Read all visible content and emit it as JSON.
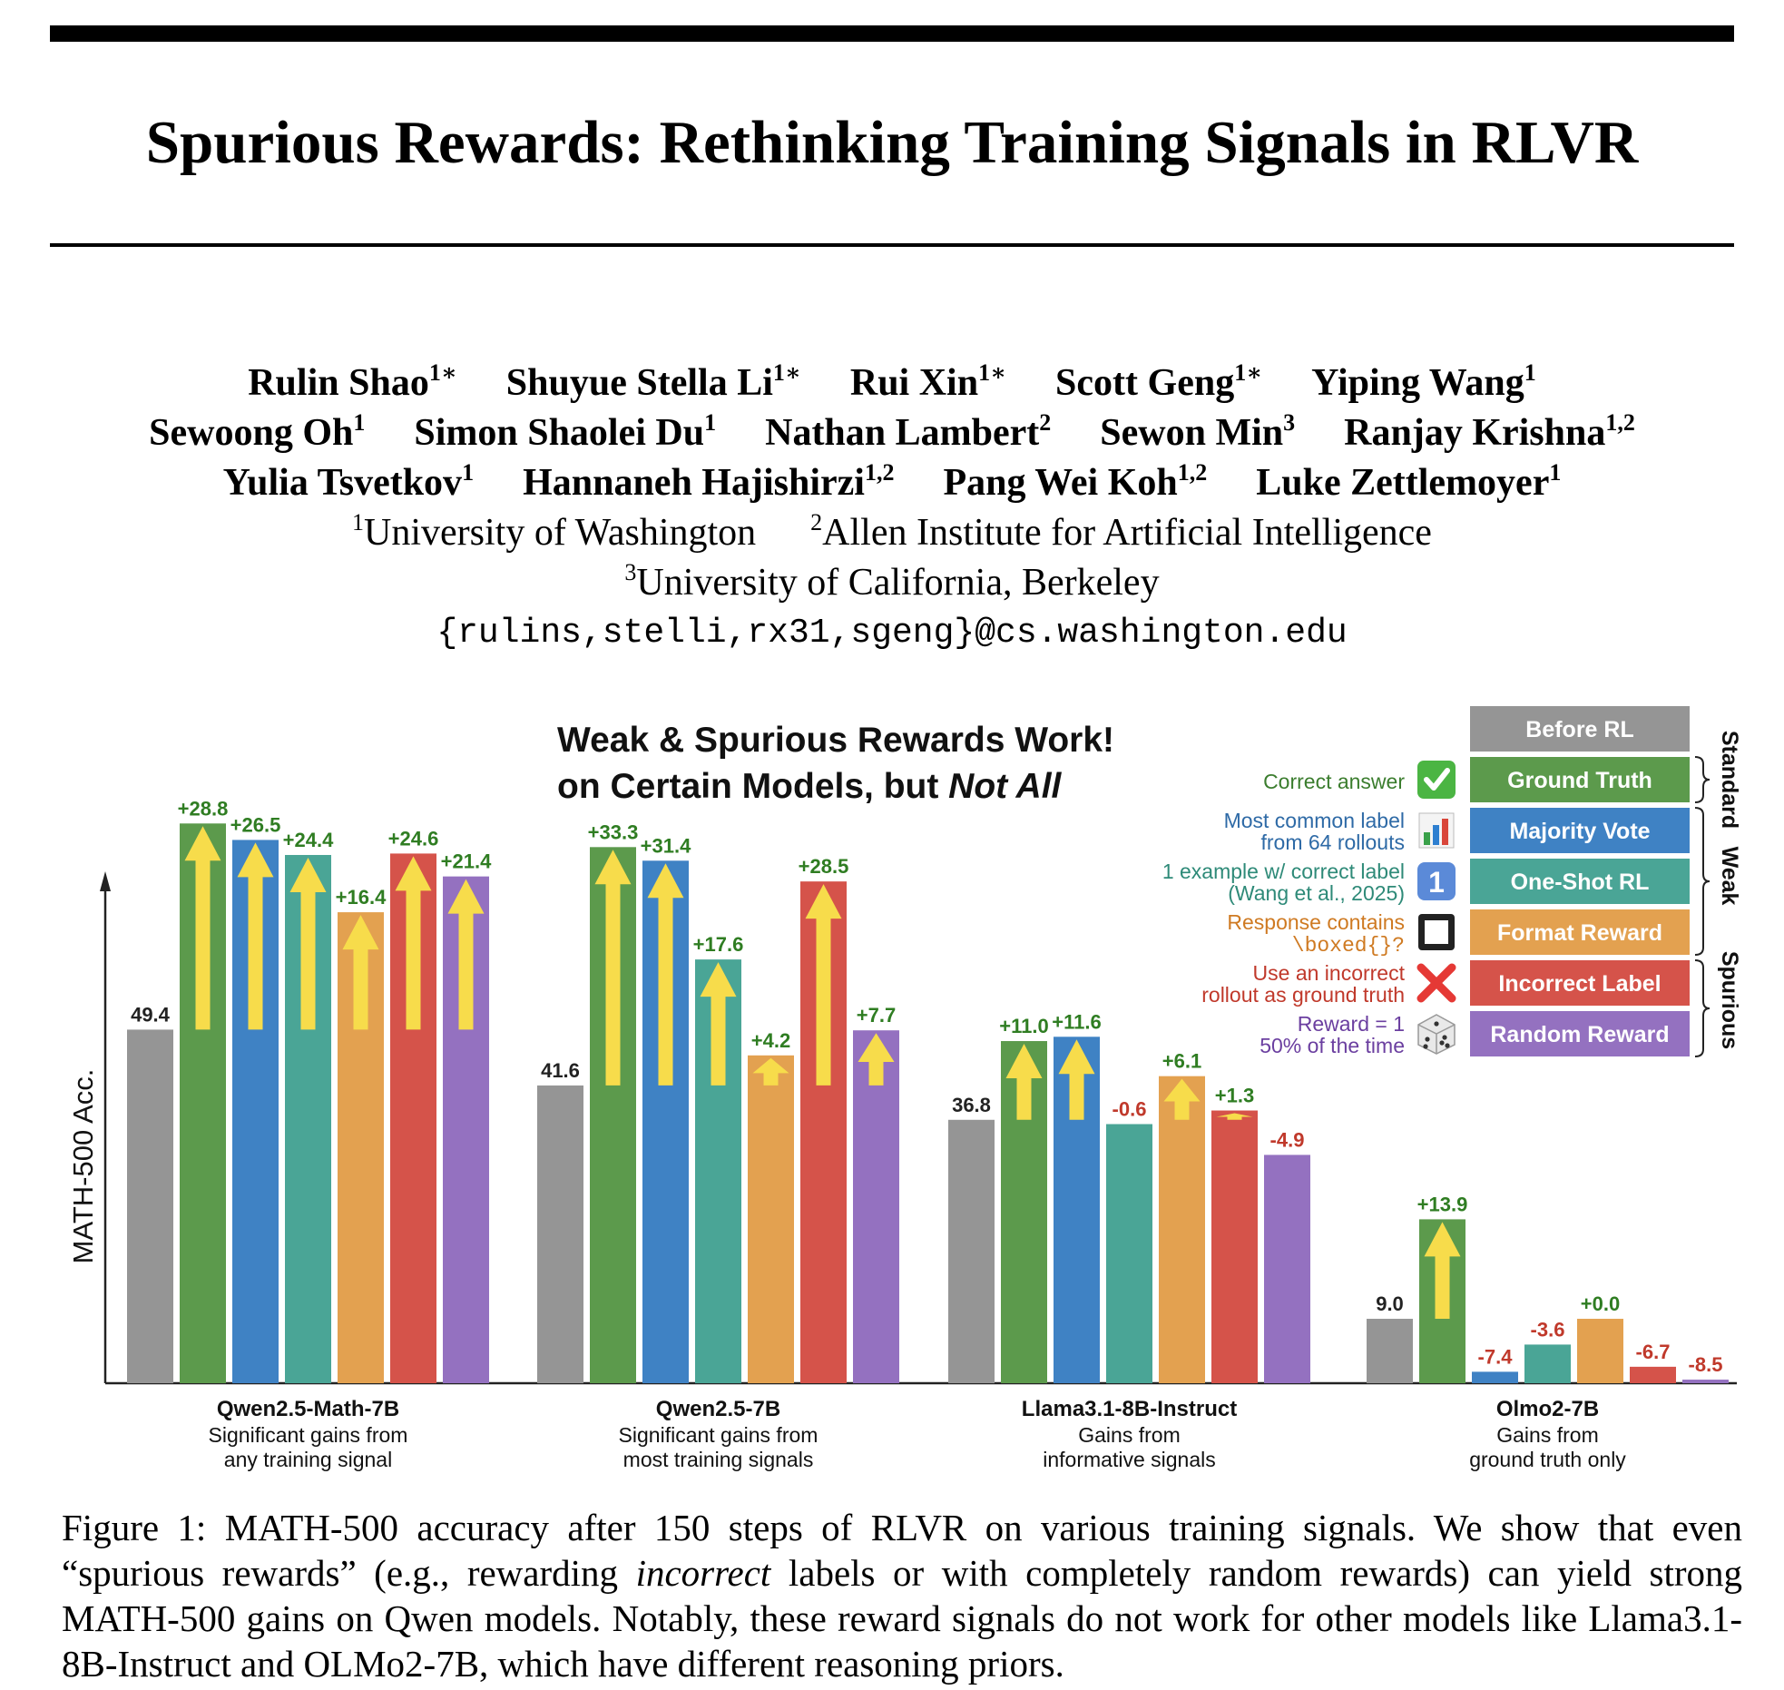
{
  "paper": {
    "title": "Spurious Rewards: Rethinking Training Signals in RLVR",
    "author_lines": [
      [
        {
          "name": "Rulin Shao",
          "sup": "1∗"
        },
        {
          "name": "Shuyue Stella Li",
          "sup": "1∗"
        },
        {
          "name": "Rui Xin",
          "sup": "1∗"
        },
        {
          "name": "Scott Geng",
          "sup": "1∗"
        },
        {
          "name": "Yiping Wang",
          "sup": "1"
        }
      ],
      [
        {
          "name": "Sewoong Oh",
          "sup": "1"
        },
        {
          "name": "Simon Shaolei Du",
          "sup": "1"
        },
        {
          "name": "Nathan Lambert",
          "sup": "2"
        },
        {
          "name": "Sewon Min",
          "sup": "3"
        },
        {
          "name": "Ranjay Krishna",
          "sup": "1,2"
        }
      ],
      [
        {
          "name": "Yulia Tsvetkov",
          "sup": "1"
        },
        {
          "name": "Hannaneh Hajishirzi",
          "sup": "1,2"
        },
        {
          "name": "Pang Wei Koh",
          "sup": "1,2"
        },
        {
          "name": "Luke Zettlemoyer",
          "sup": "1"
        }
      ]
    ],
    "affiliation_lines": [
      [
        {
          "sup": "1",
          "name": "University of Washington"
        },
        {
          "sup": "2",
          "name": "Allen Institute for Artificial Intelligence"
        }
      ],
      [
        {
          "sup": "3",
          "name": "University of California, Berkeley"
        }
      ]
    ],
    "email": "{rulins,stelli,rx31,sgeng}@cs.washington.edu"
  },
  "figure": {
    "title_line1": "Weak & Spurious Rewards Work!",
    "title_line2_prefix": "on Certain Models, but ",
    "title_line2_emph": "Not All",
    "legend": [
      {
        "label": "Before RL",
        "color": "#959595",
        "desc": [],
        "icon": "none"
      },
      {
        "label": "Ground Truth",
        "color": "#5c9a4c",
        "desc": [
          "Correct answer"
        ],
        "desc_color": "#3b7d2e",
        "icon": "check-icon"
      },
      {
        "label": "Majority Vote",
        "color": "#3f82c4",
        "desc": [
          "Most common label",
          "from 64 rollouts"
        ],
        "desc_color": "#2e6aa6",
        "icon": "bar-chart-icon"
      },
      {
        "label": "One-Shot RL",
        "color": "#4aa596",
        "desc": [
          "1 example w/ correct label",
          "(Wang et al., 2025)"
        ],
        "desc_color": "#2e8a78",
        "icon": "one-icon"
      },
      {
        "label": "Format Reward",
        "color": "#e3a150",
        "desc": [
          "Response contains",
          "\\boxed{}?"
        ],
        "desc_color": "#cf7a22",
        "icon": "square-icon"
      },
      {
        "label": "Incorrect Label",
        "color": "#d5534a",
        "desc": [
          "Use an incorrect",
          "rollout as ground truth"
        ],
        "desc_color": "#c0392b",
        "icon": "cross-icon"
      },
      {
        "label": "Random Reward",
        "color": "#9471c0",
        "desc": [
          "Reward = 1",
          "50% of the time"
        ],
        "desc_color": "#6b3fa0",
        "icon": "dice-icon"
      }
    ],
    "brackets": [
      "Standard",
      "Weak",
      "Spurious"
    ]
  },
  "chart_data": {
    "type": "bar",
    "title": "Weak & Spurious Rewards Work! on Certain Models, but Not All",
    "ylabel": "MATH-500 Acc.",
    "ylim": [
      0,
      88
    ],
    "series_names": [
      "Before RL",
      "Ground Truth",
      "Majority Vote",
      "One-Shot RL",
      "Format Reward",
      "Incorrect Label",
      "Random Reward"
    ],
    "groups": [
      {
        "model": "Qwen2.5-Math-7B",
        "subtitle": [
          "Significant gains from",
          "any training signal"
        ],
        "baseline": 49.4,
        "baseline_label": "49.4",
        "deltas": [
          28.8,
          26.5,
          24.4,
          16.4,
          24.6,
          21.4
        ],
        "delta_labels": [
          "+28.8",
          "+26.5",
          "+24.4",
          "+16.4",
          "+24.6",
          "+21.4"
        ]
      },
      {
        "model": "Qwen2.5-7B",
        "subtitle": [
          "Significant gains from",
          "most training signals"
        ],
        "baseline": 41.6,
        "baseline_label": "41.6",
        "deltas": [
          33.3,
          31.4,
          17.6,
          4.2,
          28.5,
          7.7
        ],
        "delta_labels": [
          "+33.3",
          "+31.4",
          "+17.6",
          "+4.2",
          "+28.5",
          "+7.7"
        ]
      },
      {
        "model": "Llama3.1-8B-Instruct",
        "subtitle": [
          "Gains from",
          "informative signals"
        ],
        "baseline": 36.8,
        "baseline_label": "36.8",
        "deltas": [
          11.0,
          11.6,
          -0.6,
          6.1,
          1.3,
          -4.9
        ],
        "delta_labels": [
          "+11.0",
          "+11.6",
          "-0.6",
          "+6.1",
          "+1.3",
          "-4.9"
        ]
      },
      {
        "model": "Olmo2-7B",
        "subtitle": [
          "Gains from",
          "ground truth only"
        ],
        "baseline": 9.0,
        "baseline_label": "9.0",
        "deltas": [
          13.9,
          -7.4,
          -3.6,
          0.0,
          -6.7,
          -8.5
        ],
        "delta_labels": [
          "+13.9",
          "-7.4",
          "-3.6",
          "+0.0",
          "-6.7",
          "-8.5"
        ]
      }
    ],
    "colors": {
      "positive_label": "#2f7d22",
      "negative_label": "#c0392b",
      "arrow": "#f7dc4b"
    }
  },
  "caption": {
    "prefix": "Figure 1: MATH-500 accuracy after 150 steps of RLVR on various training signals. We show that even “spurious rewards” (e.g., rewarding ",
    "emph": "incorrect",
    "suffix": " labels or with completely random rewards) can yield strong MATH-500 gains on Qwen models. Notably, these reward signals do not work for other models like Llama3.1-8B-Instruct and OLMo2-7B, which have different reasoning priors."
  }
}
